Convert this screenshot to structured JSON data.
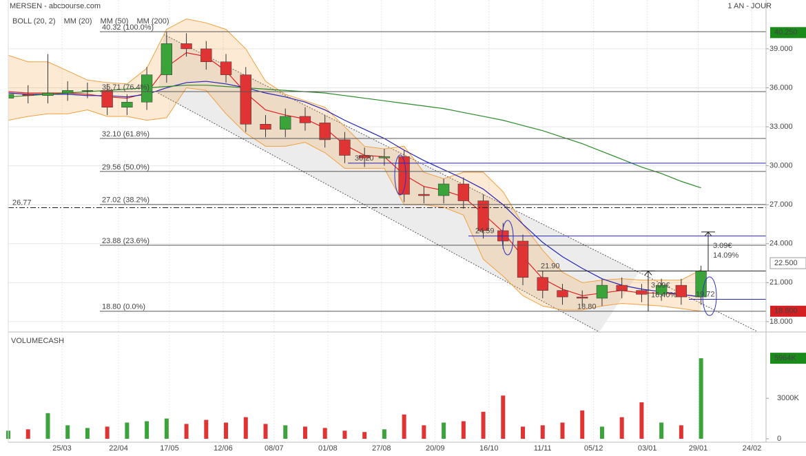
{
  "header": {
    "title": "MERSEN - abcbourse.com",
    "period": "1 AN - JOUR"
  },
  "chart_data": [
    {
      "type": "candlestick",
      "up_color": "#3aa33a",
      "down_color": "#e03434",
      "x": [
        0,
        7,
        14,
        21,
        28,
        35,
        42,
        49,
        56,
        63,
        70,
        77,
        84,
        91,
        98,
        105,
        112,
        119,
        126,
        133,
        140,
        147,
        154,
        161,
        168,
        175,
        182,
        189,
        196,
        203,
        210,
        217,
        224,
        231,
        238,
        245
      ],
      "open": [
        35.2,
        35.5,
        35.4,
        35.6,
        35.8,
        35.8,
        34.5,
        34.9,
        37.0,
        39.4,
        39.0,
        38.0,
        37.0,
        33.2,
        32.8,
        33.8,
        33.3,
        32.0,
        30.8,
        30.6,
        30.7,
        27.8,
        27.7,
        28.6,
        27.3,
        25.0,
        24.2,
        21.4,
        20.4,
        19.9,
        19.8,
        20.8,
        20.4,
        20.1,
        20.8,
        19.9
      ],
      "high": [
        36.3,
        36.2,
        38.6,
        36.5,
        36.4,
        36.3,
        35.5,
        37.6,
        40.3,
        40.2,
        39.6,
        38.6,
        37.6,
        33.9,
        34.4,
        34.5,
        33.9,
        32.6,
        31.4,
        31.3,
        31.2,
        28.4,
        29.0,
        29.1,
        27.8,
        25.6,
        24.7,
        21.9,
        20.9,
        20.4,
        21.3,
        21.4,
        20.9,
        21.3,
        21.3,
        22.3
      ],
      "low": [
        34.6,
        34.8,
        34.8,
        35.0,
        35.2,
        33.9,
        33.9,
        34.3,
        36.4,
        38.4,
        37.4,
        36.4,
        32.6,
        32.2,
        32.2,
        32.7,
        31.4,
        30.2,
        29.9,
        30.0,
        27.2,
        27.1,
        27.1,
        26.7,
        24.4,
        23.6,
        20.8,
        19.8,
        19.3,
        19.2,
        19.2,
        19.8,
        19.5,
        19.6,
        19.3,
        19.3
      ],
      "close": [
        35.5,
        35.4,
        35.6,
        35.8,
        35.8,
        34.5,
        34.9,
        37.0,
        39.4,
        39.0,
        38.0,
        37.0,
        33.2,
        32.8,
        33.8,
        33.3,
        32.0,
        30.8,
        30.6,
        30.7,
        27.8,
        27.7,
        28.6,
        27.3,
        25.0,
        24.2,
        21.4,
        20.4,
        19.9,
        19.8,
        20.8,
        20.4,
        20.1,
        20.8,
        19.9,
        21.9
      ],
      "bands": {
        "name": "BOLL (20, 2)",
        "color": "#f0a040",
        "upper": [
          38.5,
          38.0,
          38.0,
          37.3,
          36.6,
          36.4,
          36.3,
          37.5,
          40.5,
          41.3,
          41.0,
          40.5,
          39.0,
          36.5,
          35.5,
          35.0,
          34.5,
          33.0,
          31.5,
          31.3,
          31.5,
          29.5,
          29.0,
          29.5,
          29.5,
          28.0,
          25.5,
          23.5,
          21.8,
          21.0,
          21.2,
          21.3,
          21.2,
          21.2,
          21.2,
          22.0
        ],
        "lower": [
          33.5,
          33.8,
          34.0,
          34.0,
          34.3,
          33.8,
          33.8,
          33.5,
          33.7,
          36.0,
          35.8,
          34.0,
          32.5,
          31.5,
          31.5,
          31.8,
          31.0,
          29.8,
          29.8,
          29.8,
          27.0,
          27.0,
          26.8,
          26.2,
          22.8,
          21.5,
          20.0,
          19.2,
          18.9,
          18.9,
          19.2,
          19.4,
          19.3,
          19.2,
          19.0,
          18.8
        ]
      },
      "series": [
        {
          "name": "MM (20)",
          "color": "#e02020",
          "values": [
            35.7,
            35.6,
            35.6,
            35.6,
            35.5,
            35.3,
            35.2,
            35.6,
            37.6,
            38.7,
            38.4,
            37.3,
            35.6,
            34.3,
            33.9,
            33.6,
            32.9,
            31.6,
            30.8,
            30.7,
            29.3,
            28.4,
            28.1,
            27.6,
            26.3,
            24.9,
            23.0,
            21.3,
            20.5,
            20.0,
            20.2,
            20.4,
            20.2,
            20.2,
            20.1,
            19.9
          ]
        },
        {
          "name": "MM (50)",
          "color": "#2424b8",
          "values": [
            35.6,
            35.5,
            35.5,
            35.5,
            35.4,
            35.4,
            35.3,
            35.5,
            36.0,
            36.4,
            36.5,
            36.3,
            36.0,
            35.6,
            35.3,
            34.9,
            34.3,
            33.5,
            32.8,
            32.1,
            31.2,
            30.4,
            29.7,
            29.0,
            28.2,
            27.0,
            25.5,
            24.1,
            23.0,
            22.1,
            21.3,
            20.8,
            20.5,
            20.3,
            20.1,
            19.9
          ]
        },
        {
          "name": "MM (200)",
          "color": "#2a8a2a",
          "values": [
            35.3,
            35.4,
            35.5,
            35.6,
            35.7,
            35.8,
            35.9,
            36.0,
            36.1,
            36.2,
            36.2,
            36.1,
            36.0,
            35.9,
            35.8,
            35.7,
            35.6,
            35.4,
            35.2,
            35.0,
            34.8,
            34.6,
            34.4,
            34.1,
            33.8,
            33.5,
            33.1,
            32.7,
            32.2,
            31.7,
            31.1,
            30.5,
            29.9,
            29.4,
            28.8,
            28.3
          ]
        }
      ],
      "xlim": [
        0,
        268
      ],
      "xticks": [
        {
          "value": 19,
          "label": "25/03"
        },
        {
          "value": 39,
          "label": "22/04"
        },
        {
          "value": 57,
          "label": "17/05"
        },
        {
          "value": 76,
          "label": "12/06"
        },
        {
          "value": 94,
          "label": "08/07"
        },
        {
          "value": 113,
          "label": "01/08"
        },
        {
          "value": 132,
          "label": "27/08"
        },
        {
          "value": 151,
          "label": "20/09"
        },
        {
          "value": 170,
          "label": "16/10"
        },
        {
          "value": 189,
          "label": "11/11"
        },
        {
          "value": 207,
          "label": "05/12"
        },
        {
          "value": 226,
          "label": "03/01"
        },
        {
          "value": 244,
          "label": "29/01"
        },
        {
          "value": 263,
          "label": "24/02"
        }
      ],
      "ylim": [
        17.2,
        42.76
      ],
      "yticks": [
        {
          "value": 18,
          "label": "18.000"
        },
        {
          "value": 21,
          "label": "21.000"
        },
        {
          "value": 24,
          "label": "24.000"
        },
        {
          "value": 27,
          "label": "27.000"
        },
        {
          "value": 30,
          "label": "30.000"
        },
        {
          "value": 33,
          "label": "33.000"
        },
        {
          "value": 36,
          "label": "36.000"
        },
        {
          "value": 39,
          "label": "39.000"
        }
      ],
      "grid": true,
      "levels": [
        {
          "value": 40.32,
          "label": "40.32  (100.0%)"
        },
        {
          "value": 35.71,
          "label": "35.71  (76.4%)"
        },
        {
          "value": 32.1,
          "label": "32.10  (61.8%)"
        },
        {
          "value": 29.56,
          "label": "29.56  (50.0%)"
        },
        {
          "value": 27.02,
          "label": "27.02  (38.2%)"
        },
        {
          "value": 23.88,
          "label": "23.88  (23.6%)"
        },
        {
          "value": 18.8,
          "label": "18.80  (0.0%)"
        }
      ],
      "blue_lines": [
        {
          "value": 30.2,
          "label": "30.20"
        },
        {
          "value": 24.59,
          "label": "24.59"
        },
        {
          "value": 19.72,
          "label": "19.72"
        }
      ],
      "marks": [
        {
          "value": 21.9,
          "label": "21.90"
        },
        {
          "value": 18.8,
          "label": "18.80"
        }
      ],
      "pivot": {
        "value": 26.77,
        "label": "26.77"
      },
      "price_tags": [
        {
          "value": 40.25,
          "label": "40.250",
          "color": "#1a8a1a"
        },
        {
          "value": 22.5,
          "label": "22.500",
          "color": "#ffffff"
        },
        {
          "value": 18.8,
          "label": "18.800",
          "color": "#d42020"
        }
      ],
      "channel": {
        "upper": {
          "x": [
            55,
            223
          ],
          "y": [
            40.1,
            21.8
          ]
        },
        "lower": {
          "x": [
            53,
            209
          ],
          "y": [
            35.6,
            17.2
          ]
        }
      },
      "measures": [
        {
          "labels": [
            "3.09€",
            "14.09%"
          ]
        },
        {
          "labels": [
            "3.09€",
            "16.40%"
          ]
        }
      ]
    },
    {
      "type": "bar",
      "title": "VOLUMECASH",
      "values": [
        600000,
        700000,
        1900000,
        1000000,
        800000,
        900000,
        1200000,
        1300000,
        1500000,
        1100000,
        1400000,
        1200000,
        1600000,
        1100000,
        1000000,
        900000,
        800000,
        600000,
        500000,
        700000,
        1800000,
        1000000,
        1200000,
        1300000,
        2000000,
        3200000,
        900000,
        1000000,
        1200000,
        2100000,
        900000,
        1600000,
        2700000,
        1200000,
        1000000,
        5964000
      ],
      "ylim": [
        0,
        7500000
      ],
      "yticks": [
        0,
        {
          "value": 3000000,
          "label": "3000K"
        }
      ],
      "last_tag": {
        "value": 5964000,
        "label": "5964K",
        "color": "#1a8a1a"
      }
    }
  ]
}
